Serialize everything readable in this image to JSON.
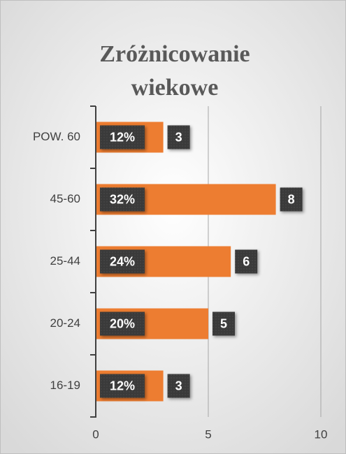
{
  "chart_data": {
    "type": "barh",
    "title_lines": [
      "Zróżnicowanie",
      "wiekowe"
    ],
    "categories": [
      "POW. 60",
      "45-60",
      "25-44",
      "20-24",
      "16-19"
    ],
    "values": [
      3,
      8,
      6,
      5,
      3
    ],
    "percentages": [
      12,
      32,
      24,
      20,
      12
    ],
    "percentage_labels": [
      "12%",
      "32%",
      "24%",
      "20%",
      "12%"
    ],
    "color": "#ed7d31",
    "label_color": "#3a3a3a",
    "xlim": [
      0,
      10
    ],
    "xticks": [
      0,
      5,
      10
    ],
    "grid": true
  }
}
